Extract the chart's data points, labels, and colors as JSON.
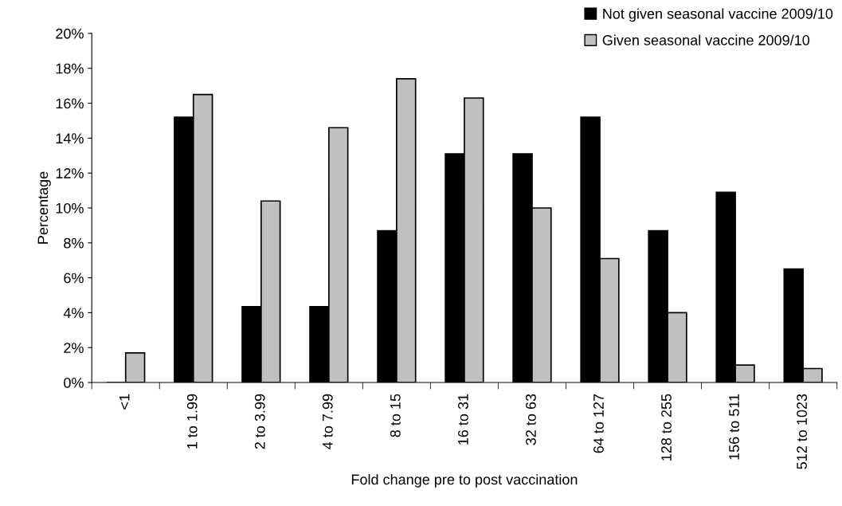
{
  "chart_data": {
    "type": "bar",
    "xlabel": "Fold change pre to post vaccination",
    "ylabel": "Percentage",
    "categories": [
      "<1",
      "1 to 1.99",
      "2 to 3.99",
      "4 to 7.99",
      "8 to 15",
      "16 to 31",
      "32 to 63",
      "64 to 127",
      "128 to 255",
      "156 to 511",
      "512 to 1023"
    ],
    "series": [
      {
        "name": "Not given seasonal vaccine 2009/10",
        "color": "#000000",
        "values": [
          0,
          15.2,
          4.35,
          4.35,
          8.7,
          13.1,
          13.1,
          15.2,
          8.7,
          10.9,
          6.5
        ]
      },
      {
        "name": "Given seasonal vaccine 2009/10",
        "color": "#c0c0c0",
        "values": [
          1.7,
          16.5,
          10.4,
          14.6,
          17.4,
          16.3,
          10.0,
          7.1,
          4.0,
          1.0,
          0.8
        ]
      }
    ],
    "ylim": [
      0,
      20
    ],
    "yticks": [
      {
        "value": 0,
        "label": "0%"
      },
      {
        "value": 2,
        "label": "2%"
      },
      {
        "value": 4,
        "label": "4%"
      },
      {
        "value": 6,
        "label": "6%"
      },
      {
        "value": 8,
        "label": "8%"
      },
      {
        "value": 10,
        "label": "10%"
      },
      {
        "value": 12,
        "label": "12%"
      },
      {
        "value": 14,
        "label": "14%"
      },
      {
        "value": 16,
        "label": "16%"
      },
      {
        "value": 18,
        "label": "18%"
      },
      {
        "value": 20,
        "label": "20%"
      }
    ],
    "grid": false,
    "legend": "top right"
  }
}
